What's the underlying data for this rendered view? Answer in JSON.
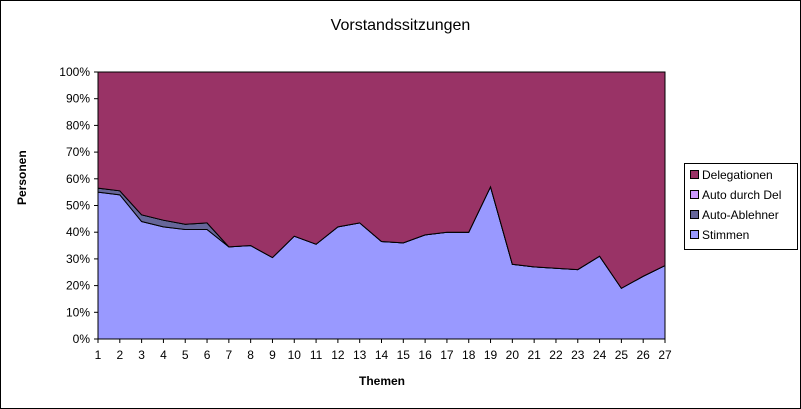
{
  "chart_data": {
    "type": "area",
    "stacked": "percent",
    "title": "Vorstandssitzungen",
    "xlabel": "Themen",
    "ylabel": "Personen",
    "x": [
      1,
      2,
      3,
      4,
      5,
      6,
      7,
      8,
      9,
      10,
      11,
      12,
      13,
      14,
      15,
      16,
      17,
      18,
      19,
      20,
      21,
      22,
      23,
      24,
      25,
      26,
      27
    ],
    "yticks": [
      "0%",
      "10%",
      "20%",
      "30%",
      "40%",
      "50%",
      "60%",
      "70%",
      "80%",
      "90%",
      "100%"
    ],
    "ylim": [
      0,
      100
    ],
    "legend_position": "right",
    "series": [
      {
        "name": "Stimmen",
        "color": "#9999FF",
        "values": [
          55,
          54,
          44,
          42,
          41,
          41,
          34.5,
          35,
          30.5,
          38.5,
          35.5,
          42,
          43.5,
          36.5,
          36,
          39,
          40,
          40,
          57,
          28,
          27,
          26.5,
          26,
          31,
          19,
          23.5,
          27.5
        ]
      },
      {
        "name": "Auto-Ablehner",
        "color": "#666699",
        "values": [
          1.5,
          1.5,
          2.5,
          2.5,
          2,
          2.5,
          0,
          0,
          0,
          0,
          0,
          0,
          0,
          0,
          0,
          0,
          0,
          0,
          0,
          0,
          0,
          0,
          0,
          0,
          0,
          0,
          0
        ]
      },
      {
        "name": "Auto durch Del",
        "color": "#CC99FF",
        "values": [
          0,
          0,
          0,
          0,
          0,
          0,
          0,
          0,
          0,
          0,
          0,
          0,
          0,
          0,
          0,
          0,
          0,
          0,
          0,
          0,
          0,
          0,
          0,
          0,
          0,
          0,
          0
        ]
      },
      {
        "name": "Delegationen",
        "color": "#993366",
        "values": [
          43.5,
          44.5,
          53.5,
          55.5,
          57,
          56.5,
          65.5,
          65,
          69.5,
          61.5,
          64.5,
          58,
          56.5,
          63.5,
          64,
          61,
          60,
          60,
          43,
          72,
          73,
          73.5,
          74,
          69,
          81,
          76.5,
          72.5
        ]
      }
    ]
  },
  "legend": [
    {
      "label": "Delegationen",
      "color": "#993366"
    },
    {
      "label": "Auto durch Del",
      "color": "#CC99FF"
    },
    {
      "label": "Auto-Ablehner",
      "color": "#666699"
    },
    {
      "label": "Stimmen",
      "color": "#9999FF"
    }
  ]
}
